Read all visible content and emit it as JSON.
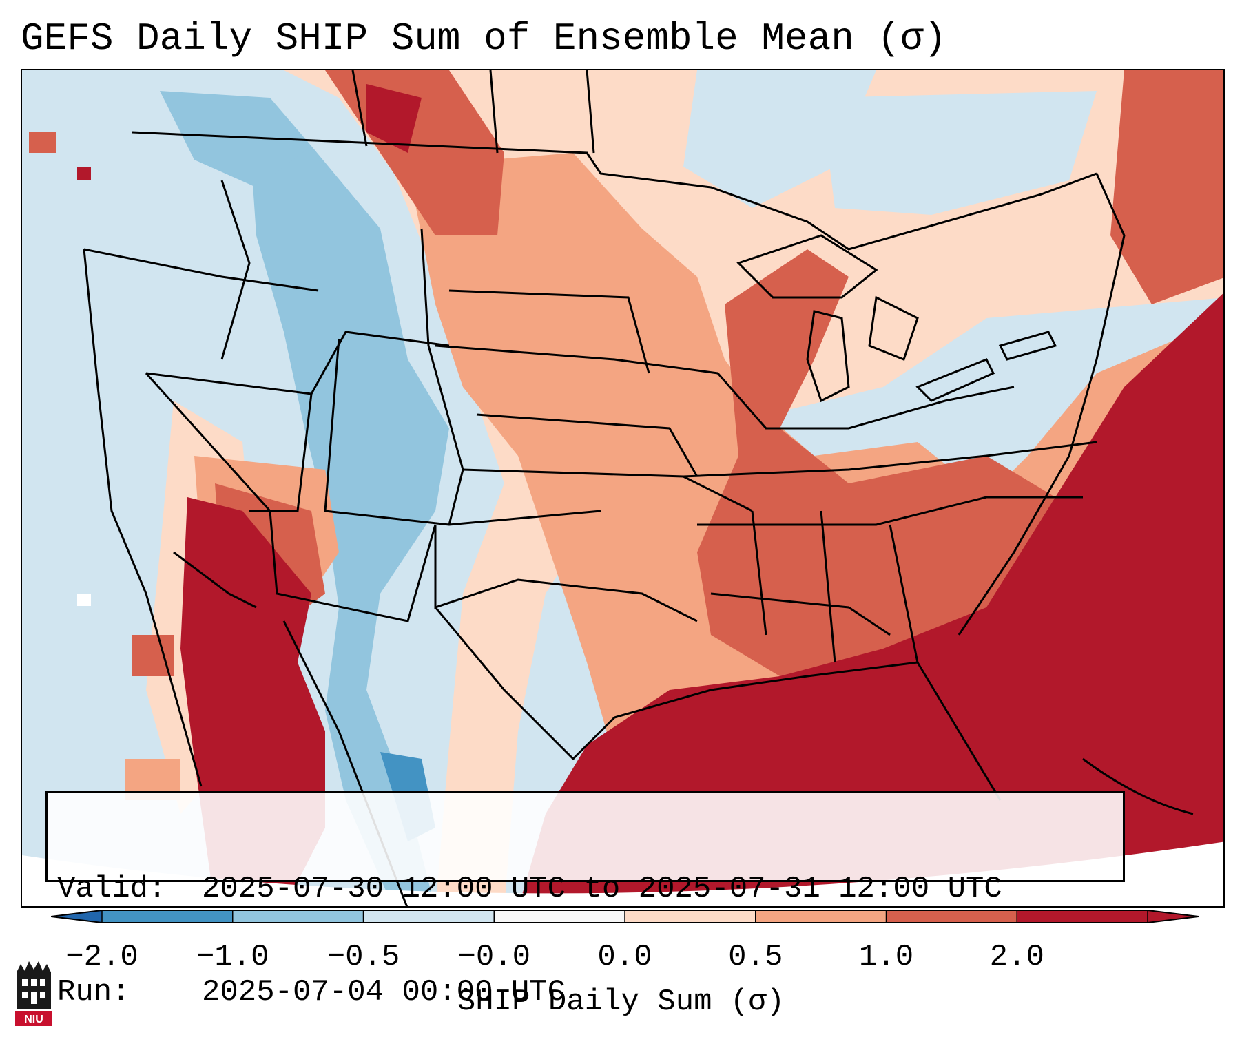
{
  "title": "GEFS Daily SHIP Sum of Ensemble Mean (σ)",
  "info": {
    "valid_label": "Valid:",
    "valid_value": "2025-07-30 12:00 UTC to 2025-07-31 12:00 UTC",
    "run_label": "Run:",
    "run_value": "2025-07-04 00:00 UTC"
  },
  "colorbar": {
    "label": "SHIP Daily Sum (σ)",
    "ticks": [
      "−2.0",
      "−1.0",
      "−0.5",
      "−0.0",
      "0.0",
      "0.5",
      "1.0",
      "2.0"
    ],
    "colors": [
      "#4393c3",
      "#92c5de",
      "#d1e5f0",
      "#f7f7f7",
      "#fddbc7",
      "#f4a582",
      "#d6604d",
      "#b2182b"
    ],
    "extend_low_color": "#2166ac",
    "extend_high_color": "#b2182b"
  },
  "logo": {
    "text": "NIU",
    "color": "#c8102e"
  }
}
